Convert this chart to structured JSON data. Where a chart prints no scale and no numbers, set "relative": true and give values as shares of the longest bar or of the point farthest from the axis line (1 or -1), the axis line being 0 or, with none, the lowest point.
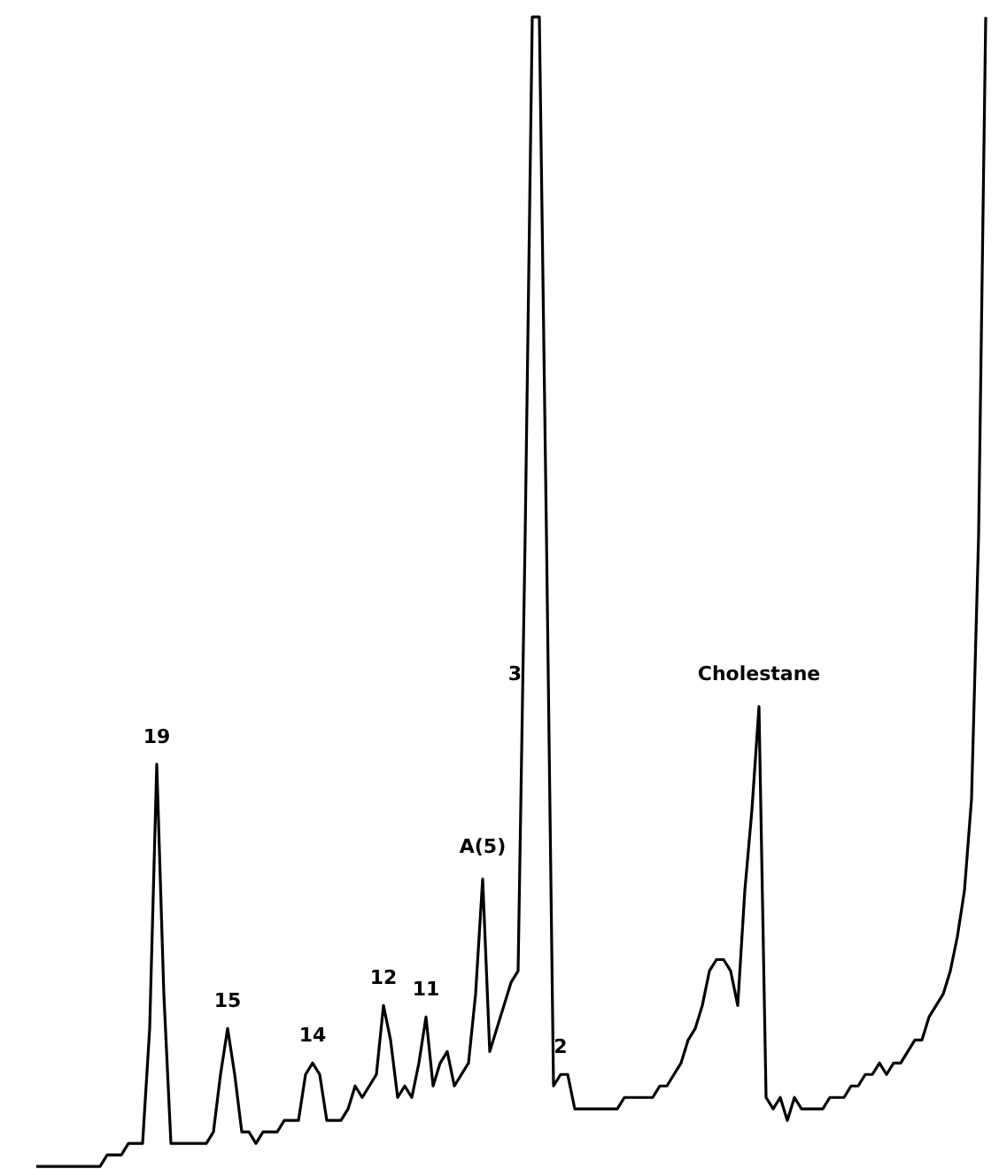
{
  "chart_data": {
    "type": "line",
    "relative": true,
    "categories": [
      null,
      null,
      null,
      null,
      null,
      null,
      null,
      null,
      null,
      null,
      null,
      null,
      null,
      null,
      null,
      null,
      null,
      null,
      null,
      null,
      null,
      null,
      null,
      null,
      null,
      null,
      null,
      null,
      null,
      null,
      null,
      null,
      null,
      null,
      null,
      null,
      null,
      null,
      null,
      null,
      null,
      null,
      null,
      null,
      null,
      null,
      null,
      null,
      null,
      null,
      null,
      null,
      null,
      null,
      null,
      null,
      null,
      null,
      null,
      null,
      null,
      null,
      null,
      null,
      null,
      null,
      null,
      null,
      null,
      null,
      null,
      null,
      null,
      null,
      null,
      null,
      null,
      null,
      null,
      null,
      null,
      null,
      null,
      null,
      null,
      null,
      null,
      null,
      null,
      null,
      null,
      null,
      null,
      null,
      null,
      null,
      null,
      null,
      null,
      null,
      null,
      null,
      null,
      null,
      null,
      null,
      null,
      null,
      null,
      null,
      null,
      null,
      null,
      null,
      null,
      null,
      null,
      null,
      null,
      null,
      null,
      null,
      null,
      null,
      null,
      null,
      null,
      null,
      null,
      null,
      null,
      null,
      null,
      null,
      null
    ],
    "series": [
      {
        "color": "#000000",
        "values": [
          0,
          0,
          0,
          0,
          0,
          0,
          0,
          0,
          0,
          0,
          0.01,
          0.01,
          0.01,
          0.02,
          0.02,
          0.02,
          0.12,
          0.35,
          0.15,
          0.02,
          0.02,
          0.02,
          0.02,
          0.02,
          0.02,
          0.03,
          0.08,
          0.12,
          0.08,
          0.03,
          0.03,
          0.02,
          0.03,
          0.03,
          0.03,
          0.04,
          0.04,
          0.04,
          0.08,
          0.09,
          0.08,
          0.04,
          0.04,
          0.04,
          0.05,
          0.07,
          0.06,
          0.07,
          0.08,
          0.14,
          0.11,
          0.06,
          0.07,
          0.06,
          0.09,
          0.13,
          0.07,
          0.09,
          0.1,
          0.07,
          0.08,
          0.09,
          0.15,
          0.25,
          0.1,
          0.12,
          0.14,
          0.16,
          0.17,
          0.55,
          1,
          1,
          0.55,
          0.07,
          0.08,
          0.08,
          0.05,
          0.05,
          0.05,
          0.05,
          0.05,
          0.05,
          0.05,
          0.06,
          0.06,
          0.06,
          0.06,
          0.06,
          0.07,
          0.07,
          0.08,
          0.09,
          0.11,
          0.12,
          0.14,
          0.17,
          0.18,
          0.18,
          0.17,
          0.14,
          0.24,
          0.31,
          0.4,
          0.06,
          0.05,
          0.06,
          0.04,
          0.06,
          0.05,
          0.05,
          0.05,
          0.05,
          0.06,
          0.06,
          0.06,
          0.07,
          0.07,
          0.08,
          0.08,
          0.09,
          0.08,
          0.09,
          0.09,
          0.1,
          0.11,
          0.11,
          0.13,
          0.14,
          0.15,
          0.17,
          0.2,
          0.24,
          0.32,
          0.55,
          1
        ]
      }
    ],
    "annotations": [
      {
        "text": "19",
        "y": 0.35
      },
      {
        "text": "15",
        "y": 0.12
      },
      {
        "text": "14",
        "y": 0.09
      },
      {
        "text": "12",
        "y": 0.14
      },
      {
        "text": "11",
        "y": 0.13
      },
      {
        "text": "A(5)",
        "y": 0.25
      },
      "3",
      {
        "text": "2",
        "y": 0.08
      },
      {
        "text": "Cholestane",
        "y": 0.4
      }
    ]
  }
}
